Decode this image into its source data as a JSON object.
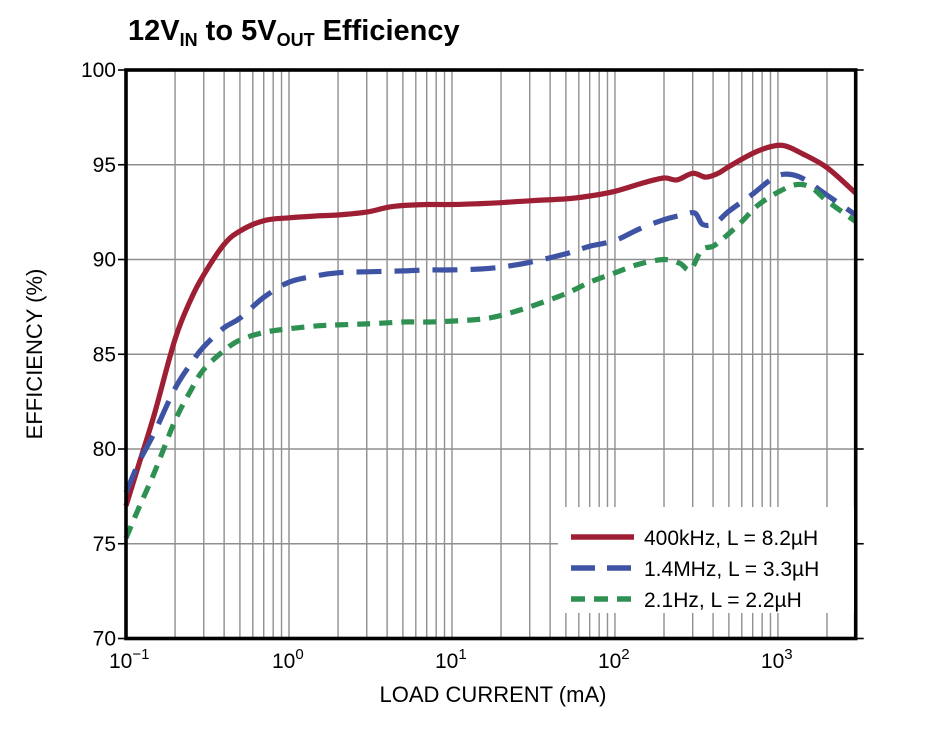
{
  "title": {
    "prefix": "12V",
    "sub_in": "IN",
    "middle": " to 5V",
    "sub_out": "OUT",
    "suffix": " Efficiency"
  },
  "chart_data": {
    "type": "line",
    "title": "12VIN to 5VOUT Efficiency",
    "xlabel": "LOAD CURRENT (mA)",
    "ylabel": "EFFICIENCY (%)",
    "x_scale": "log",
    "xlim": [
      0.1,
      3000
    ],
    "ylim": [
      70,
      100
    ],
    "x_major_ticks": [
      0.1,
      1,
      10,
      100,
      1000
    ],
    "x_tick_base": "10",
    "x_tick_exponents": [
      "-1",
      "0",
      "1",
      "2",
      "3"
    ],
    "y_ticks": [
      70,
      75,
      80,
      85,
      90,
      95,
      100
    ],
    "grid": true,
    "grid_color": "#8f8f8f",
    "frame_color": "#000000",
    "legend_position": "bottom-right",
    "series": [
      {
        "name": "400kHz, L = 8.2µH",
        "color": "#9E1F33",
        "line_style": "solid",
        "points": [
          [
            0.1,
            77.0
          ],
          [
            0.12,
            79.2
          ],
          [
            0.15,
            81.9
          ],
          [
            0.2,
            85.8
          ],
          [
            0.25,
            87.9
          ],
          [
            0.3,
            89.2
          ],
          [
            0.4,
            90.8
          ],
          [
            0.5,
            91.5
          ],
          [
            0.7,
            92.05
          ],
          [
            1,
            92.2
          ],
          [
            1.5,
            92.3
          ],
          [
            2,
            92.35
          ],
          [
            3,
            92.5
          ],
          [
            4,
            92.75
          ],
          [
            5,
            92.85
          ],
          [
            7,
            92.9
          ],
          [
            10,
            92.9
          ],
          [
            15,
            92.95
          ],
          [
            20,
            93.0
          ],
          [
            30,
            93.1
          ],
          [
            50,
            93.2
          ],
          [
            70,
            93.35
          ],
          [
            100,
            93.6
          ],
          [
            150,
            94.05
          ],
          [
            200,
            94.3
          ],
          [
            240,
            94.2
          ],
          [
            300,
            94.55
          ],
          [
            360,
            94.35
          ],
          [
            430,
            94.55
          ],
          [
            500,
            94.9
          ],
          [
            700,
            95.6
          ],
          [
            900,
            95.95
          ],
          [
            1100,
            96.0
          ],
          [
            1400,
            95.6
          ],
          [
            2000,
            94.85
          ],
          [
            3000,
            93.5
          ]
        ]
      },
      {
        "name": "1.4MHz, L = 3.3µH",
        "color": "#3E53A4",
        "line_style": "long-dash",
        "points": [
          [
            0.1,
            77.7
          ],
          [
            0.12,
            79.3
          ],
          [
            0.15,
            80.9
          ],
          [
            0.2,
            83.2
          ],
          [
            0.25,
            84.5
          ],
          [
            0.3,
            85.4
          ],
          [
            0.4,
            86.4
          ],
          [
            0.5,
            86.9
          ],
          [
            0.7,
            88.0
          ],
          [
            1,
            88.8
          ],
          [
            1.5,
            89.15
          ],
          [
            2,
            89.3
          ],
          [
            3,
            89.35
          ],
          [
            5,
            89.4
          ],
          [
            7,
            89.45
          ],
          [
            10,
            89.45
          ],
          [
            15,
            89.5
          ],
          [
            20,
            89.6
          ],
          [
            30,
            89.85
          ],
          [
            50,
            90.3
          ],
          [
            70,
            90.7
          ],
          [
            100,
            91.0
          ],
          [
            140,
            91.6
          ],
          [
            200,
            92.1
          ],
          [
            260,
            92.35
          ],
          [
            310,
            92.45
          ],
          [
            345,
            91.85
          ],
          [
            410,
            91.9
          ],
          [
            500,
            92.55
          ],
          [
            700,
            93.45
          ],
          [
            900,
            94.2
          ],
          [
            1100,
            94.5
          ],
          [
            1400,
            94.3
          ],
          [
            2000,
            93.4
          ],
          [
            3000,
            92.35
          ]
        ]
      },
      {
        "name": "2.1Hz, L = 2.2µH",
        "color": "#2E9152",
        "line_style": "short-dash",
        "points": [
          [
            0.1,
            75.3
          ],
          [
            0.12,
            76.9
          ],
          [
            0.15,
            78.8
          ],
          [
            0.2,
            81.5
          ],
          [
            0.25,
            83.1
          ],
          [
            0.3,
            84.2
          ],
          [
            0.4,
            85.2
          ],
          [
            0.5,
            85.75
          ],
          [
            0.7,
            86.15
          ],
          [
            1,
            86.35
          ],
          [
            1.5,
            86.5
          ],
          [
            2,
            86.55
          ],
          [
            3,
            86.6
          ],
          [
            5,
            86.7
          ],
          [
            7,
            86.7
          ],
          [
            10,
            86.75
          ],
          [
            15,
            86.85
          ],
          [
            20,
            87.05
          ],
          [
            30,
            87.5
          ],
          [
            50,
            88.2
          ],
          [
            70,
            88.8
          ],
          [
            100,
            89.3
          ],
          [
            140,
            89.75
          ],
          [
            200,
            90.0
          ],
          [
            250,
            89.8
          ],
          [
            290,
            89.45
          ],
          [
            340,
            90.5
          ],
          [
            400,
            90.7
          ],
          [
            475,
            91.2
          ],
          [
            600,
            92.0
          ],
          [
            750,
            92.85
          ],
          [
            1000,
            93.55
          ],
          [
            1300,
            93.95
          ],
          [
            1600,
            93.8
          ],
          [
            2000,
            93.1
          ],
          [
            3000,
            92.0
          ]
        ]
      }
    ]
  }
}
